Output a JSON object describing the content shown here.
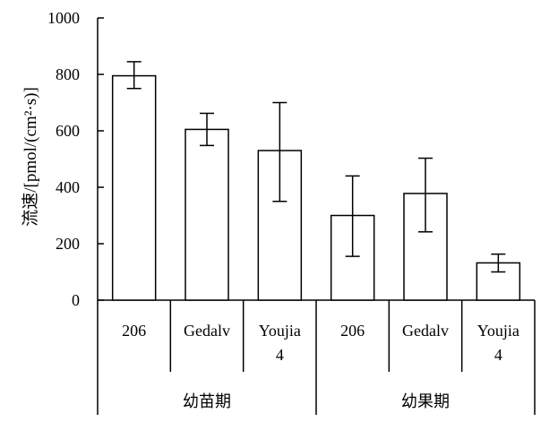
{
  "chart_data": {
    "type": "bar",
    "ylabel": "流速/[pmol/(cm²·s)]",
    "ylim": [
      0,
      1000
    ],
    "yticks": [
      0,
      200,
      400,
      600,
      800,
      1000
    ],
    "groups": [
      {
        "label": "幼苗期",
        "bars": [
          {
            "category": "206",
            "value": 795,
            "err_low": 750,
            "err_high": 845
          },
          {
            "category": "Gedalv",
            "value": 605,
            "err_low": 548,
            "err_high": 662
          },
          {
            "category": "Youjia\n4",
            "value": 530,
            "err_low": 350,
            "err_high": 700
          }
        ]
      },
      {
        "label": "幼果期",
        "bars": [
          {
            "category": "206",
            "value": 300,
            "err_low": 155,
            "err_high": 440
          },
          {
            "category": "Gedalv",
            "value": 378,
            "err_low": 242,
            "err_high": 503
          },
          {
            "category": "Youjia\n4",
            "value": 132,
            "err_low": 100,
            "err_high": 163
          }
        ]
      }
    ],
    "bar_fill": "#ffffff",
    "bar_stroke": "#000000",
    "grid": false
  }
}
